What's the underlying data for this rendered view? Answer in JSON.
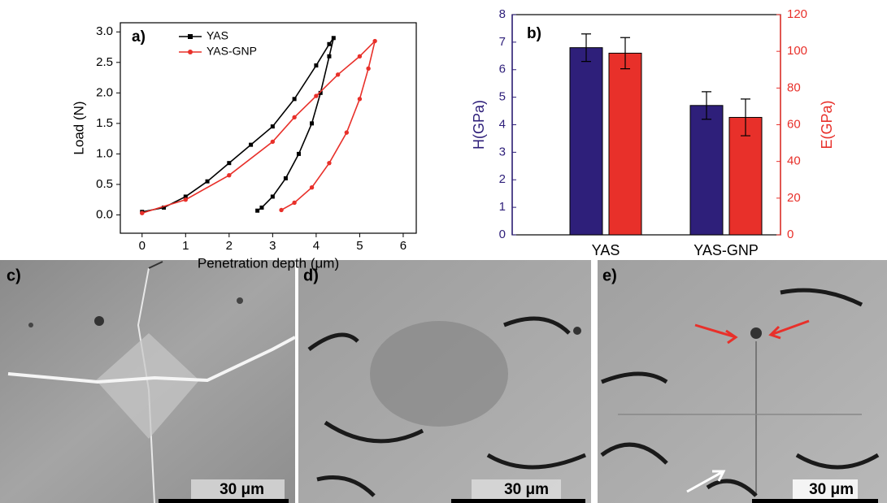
{
  "chart_data": [
    {
      "type": "line",
      "panel_label": "a)",
      "x_label": "Penetration depth (μm)",
      "y_label": "Load (N)",
      "xlim": [
        -0.5,
        6.3
      ],
      "ylim": [
        -0.3,
        3.15
      ],
      "xticks": [
        0,
        1,
        2,
        3,
        4,
        5,
        6
      ],
      "yticks": [
        {
          "value": 0,
          "label": "0.0"
        },
        0.5,
        {
          "value": 1,
          "label": "1.0"
        },
        1.5,
        {
          "value": 2,
          "label": "2.0"
        },
        2.5,
        {
          "value": 3,
          "label": "3.0"
        }
      ],
      "legend": "top-left",
      "series": [
        {
          "name": "YAS",
          "color": "#000000",
          "marker": "square",
          "x": [
            0,
            0.5,
            1,
            1.5,
            2,
            2.5,
            3,
            3.5,
            4,
            4.3,
            4.4,
            4.3,
            4.1,
            3.9,
            3.6,
            3.3,
            3.0,
            2.75,
            2.65
          ],
          "values": [
            0.05,
            0.12,
            0.3,
            0.55,
            0.85,
            1.15,
            1.45,
            1.9,
            2.45,
            2.8,
            2.9,
            2.6,
            2.0,
            1.5,
            1.0,
            0.6,
            0.3,
            0.12,
            0.07
          ]
        },
        {
          "name": "YAS-GNP",
          "color": "#e8302a",
          "marker": "circle",
          "x": [
            0,
            1,
            2,
            3,
            3.5,
            4,
            4.5,
            5,
            5.35,
            5.2,
            5,
            4.7,
            4.3,
            3.9,
            3.5,
            3.2
          ],
          "values": [
            0.03,
            0.25,
            0.65,
            1.2,
            1.6,
            1.95,
            2.3,
            2.6,
            2.85,
            2.4,
            1.9,
            1.35,
            0.85,
            0.45,
            0.2,
            0.08
          ]
        }
      ]
    },
    {
      "type": "bar",
      "panel_label": "b)",
      "y_label": "H(GPa)",
      "y2_label": "E(GPa)",
      "categories": [
        "YAS",
        "YAS-GNP"
      ],
      "ylim": [
        0,
        8
      ],
      "yticks": [
        0,
        1,
        2,
        3,
        4,
        5,
        6,
        7,
        8
      ],
      "y2lim": [
        0,
        120
      ],
      "y2ticks": [
        0,
        20,
        40,
        60,
        80,
        100,
        120
      ],
      "series": [
        {
          "color": "#2e1f7a",
          "axis": "y",
          "values": [
            6.8,
            4.7
          ],
          "errors": [
            0.5,
            0.5
          ]
        },
        {
          "color": "#e8302a",
          "axis": "y2",
          "values": [
            99,
            64
          ],
          "errors": [
            8.5,
            10
          ]
        }
      ]
    }
  ],
  "panels": [
    {
      "label": "c)",
      "scale_bar": "30 μm"
    },
    {
      "label": "d)",
      "scale_bar": "30 μm"
    },
    {
      "label": "e)",
      "scale_bar": "30 μm"
    }
  ]
}
